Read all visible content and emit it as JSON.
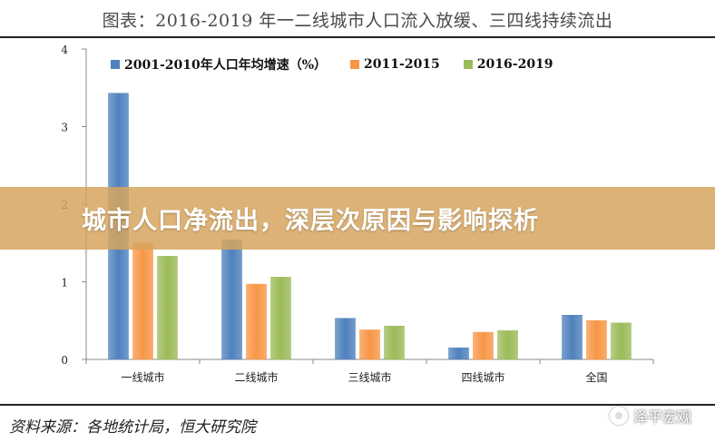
{
  "header": {
    "title": "图表：2016-2019 年一二线城市人口流入放缓、三四线持续流出"
  },
  "banner": {
    "text": "城市人口净流出，深层次原因与影响探析"
  },
  "footer": {
    "source": "资料来源：各地统计局，恒大研究院",
    "watermark": "泽平宏观",
    "watermark_icon": "wechat-icon"
  },
  "colors": {
    "series1": "#4f81bd",
    "series2": "#f79646",
    "series3": "#9bbb59"
  },
  "chart_data": {
    "type": "bar",
    "title": "",
    "xlabel": "",
    "ylabel": "",
    "ylim": [
      0,
      4
    ],
    "yticks": [
      "0",
      "1",
      "2",
      "3",
      "4"
    ],
    "grid": false,
    "legend_position": "top",
    "categories": [
      "一线城市",
      "二线城市",
      "三线城市",
      "四线城市",
      "全国"
    ],
    "series": [
      {
        "name": "2001-2010年人口年均增速（%）",
        "values": [
          3.43,
          1.54,
          0.53,
          0.15,
          0.57
        ]
      },
      {
        "name": "2011-2015",
        "values": [
          1.5,
          0.97,
          0.38,
          0.35,
          0.5
        ]
      },
      {
        "name": "2016-2019",
        "values": [
          1.33,
          1.06,
          0.43,
          0.37,
          0.47
        ]
      }
    ]
  }
}
